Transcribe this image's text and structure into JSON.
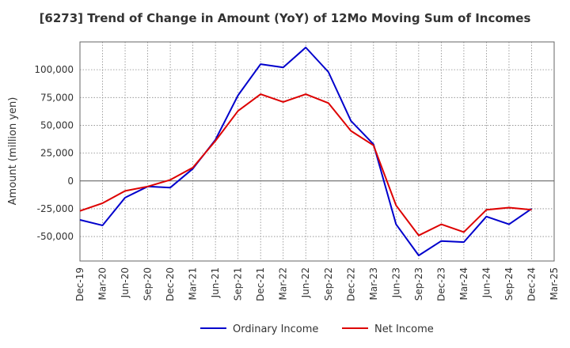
{
  "chart_data": {
    "type": "line",
    "title": "[6273]  Trend of Change in Amount (YoY) of 12Mo Moving Sum of Incomes",
    "xlabel": "",
    "ylabel": "Amount (million yen)",
    "ylim": [
      -72000,
      125000
    ],
    "yticks": [
      100000,
      75000,
      50000,
      25000,
      0,
      -25000,
      -50000
    ],
    "ytick_labels": [
      "100,000",
      "75,000",
      "50,000",
      "25,000",
      "0",
      "-25,000",
      "-50,000"
    ],
    "categories": [
      "Dec-19",
      "Mar-20",
      "Jun-20",
      "Sep-20",
      "Dec-20",
      "Mar-21",
      "Jun-21",
      "Sep-21",
      "Dec-21",
      "Mar-22",
      "Jun-22",
      "Sep-22",
      "Dec-22",
      "Mar-23",
      "Jun-23",
      "Sep-23",
      "Dec-23",
      "Mar-24",
      "Jun-24",
      "Sep-24",
      "Dec-24",
      "Mar-25"
    ],
    "grid": true,
    "legend_position": "bottom",
    "series": [
      {
        "name": "Ordinary Income",
        "color": "#0000cc",
        "values": [
          -35000,
          -40000,
          -15000,
          -5000,
          -6000,
          11000,
          37000,
          77000,
          105000,
          102000,
          120000,
          98000,
          54000,
          33000,
          -39000,
          -67000,
          -54000,
          -55000,
          -32000,
          -39000,
          -25000,
          null
        ]
      },
      {
        "name": "Net Income",
        "color": "#dd0000",
        "values": [
          -27000,
          -20000,
          -9000,
          -5000,
          1000,
          12000,
          36000,
          63000,
          78000,
          71000,
          78000,
          70000,
          45000,
          32000,
          -22000,
          -49000,
          -39000,
          -46000,
          -26000,
          -24000,
          -26000,
          null
        ]
      }
    ]
  }
}
